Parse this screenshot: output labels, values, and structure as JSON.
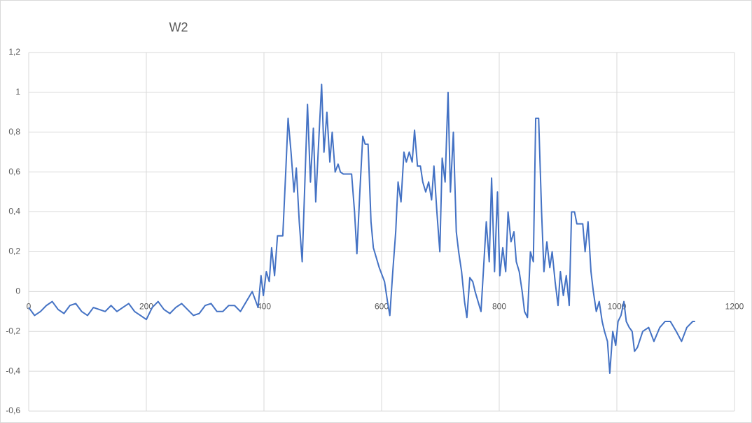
{
  "chart_data": {
    "type": "line",
    "title": "W2",
    "x": [
      0,
      10,
      20,
      30,
      40,
      50,
      60,
      70,
      80,
      90,
      100,
      110,
      120,
      130,
      140,
      150,
      160,
      170,
      180,
      190,
      200,
      210,
      220,
      230,
      240,
      250,
      260,
      270,
      280,
      290,
      300,
      310,
      320,
      330,
      340,
      350,
      360,
      370,
      380,
      390,
      395,
      399,
      404,
      409,
      413,
      418,
      423,
      432,
      437,
      441,
      446,
      451,
      455,
      460,
      465,
      469,
      474,
      479,
      484,
      488,
      493,
      498,
      502,
      507,
      512,
      516,
      521,
      526,
      530,
      535,
      549,
      554,
      558,
      563,
      568,
      572,
      577,
      582,
      586,
      596,
      605,
      610,
      614,
      619,
      624,
      628,
      633,
      638,
      642,
      647,
      652,
      656,
      661,
      666,
      670,
      675,
      680,
      685,
      689,
      694,
      699,
      703,
      708,
      713,
      717,
      722,
      727,
      731,
      736,
      741,
      745,
      750,
      755,
      759,
      764,
      769,
      773,
      778,
      783,
      787,
      792,
      797,
      801,
      806,
      811,
      815,
      820,
      825,
      829,
      834,
      839,
      843,
      848,
      853,
      858,
      862,
      867,
      872,
      876,
      881,
      886,
      890,
      895,
      900,
      904,
      909,
      914,
      919,
      923,
      928,
      932,
      937,
      942,
      946,
      951,
      956,
      960,
      965,
      970,
      975,
      979,
      984,
      988,
      993,
      998,
      1002,
      1007,
      1012,
      1016,
      1021,
      1026,
      1030,
      1035,
      1044,
      1054,
      1063,
      1073,
      1082,
      1091,
      1101,
      1110,
      1119,
      1129,
      1133
    ],
    "values": [
      -0.08,
      -0.12,
      -0.1,
      -0.07,
      -0.05,
      -0.09,
      -0.11,
      -0.07,
      -0.06,
      -0.1,
      -0.12,
      -0.08,
      -0.09,
      -0.1,
      -0.07,
      -0.1,
      -0.08,
      -0.06,
      -0.1,
      -0.12,
      -0.14,
      -0.08,
      -0.05,
      -0.09,
      -0.11,
      -0.08,
      -0.06,
      -0.09,
      -0.12,
      -0.11,
      -0.07,
      -0.06,
      -0.1,
      -0.1,
      -0.07,
      -0.07,
      -0.1,
      -0.05,
      0.0,
      -0.08,
      0.08,
      -0.02,
      0.1,
      0.05,
      0.22,
      0.08,
      0.28,
      0.28,
      0.6,
      0.87,
      0.7,
      0.5,
      0.62,
      0.35,
      0.15,
      0.5,
      0.94,
      0.55,
      0.82,
      0.45,
      0.75,
      1.04,
      0.7,
      0.9,
      0.65,
      0.8,
      0.6,
      0.64,
      0.6,
      0.59,
      0.59,
      0.4,
      0.19,
      0.5,
      0.78,
      0.74,
      0.74,
      0.35,
      0.22,
      0.12,
      0.05,
      -0.05,
      -0.12,
      0.1,
      0.3,
      0.55,
      0.45,
      0.7,
      0.65,
      0.7,
      0.65,
      0.81,
      0.63,
      0.63,
      0.55,
      0.5,
      0.55,
      0.46,
      0.63,
      0.4,
      0.2,
      0.67,
      0.55,
      1.0,
      0.5,
      0.8,
      0.3,
      0.2,
      0.1,
      -0.05,
      -0.13,
      0.07,
      0.05,
      0.0,
      -0.05,
      -0.1,
      0.1,
      0.35,
      0.15,
      0.57,
      0.1,
      0.5,
      0.08,
      0.22,
      0.1,
      0.4,
      0.25,
      0.3,
      0.15,
      0.1,
      0.0,
      -0.1,
      -0.13,
      0.2,
      0.15,
      0.87,
      0.87,
      0.4,
      0.1,
      0.25,
      0.12,
      0.2,
      0.05,
      -0.07,
      0.1,
      -0.02,
      0.08,
      -0.07,
      0.4,
      0.4,
      0.34,
      0.34,
      0.34,
      0.2,
      0.35,
      0.1,
      0.0,
      -0.1,
      -0.05,
      -0.15,
      -0.2,
      -0.25,
      -0.41,
      -0.2,
      -0.27,
      -0.15,
      -0.12,
      -0.05,
      -0.15,
      -0.18,
      -0.2,
      -0.3,
      -0.28,
      -0.2,
      -0.18,
      -0.25,
      -0.18,
      -0.15,
      -0.15,
      -0.2,
      -0.25,
      -0.18,
      -0.15,
      -0.15
    ],
    "color": "#4472c4",
    "xlim": [
      0,
      1200
    ],
    "xticks": [
      0,
      200,
      400,
      600,
      800,
      1000,
      1200
    ],
    "ylim": [
      -0.6,
      1.2
    ],
    "yticks": [
      {
        "value": -0.6,
        "label": "-0,6"
      },
      {
        "value": -0.4,
        "label": "-0,4"
      },
      {
        "value": -0.2,
        "label": "-0,2"
      },
      0,
      {
        "value": 0.2,
        "label": "0,2"
      },
      {
        "value": 0.4,
        "label": "0,4"
      },
      {
        "value": 0.6,
        "label": "0,6"
      },
      {
        "value": 0.8,
        "label": "0,8"
      },
      1,
      {
        "value": 1.2,
        "label": "1,2"
      }
    ],
    "grid": true
  }
}
